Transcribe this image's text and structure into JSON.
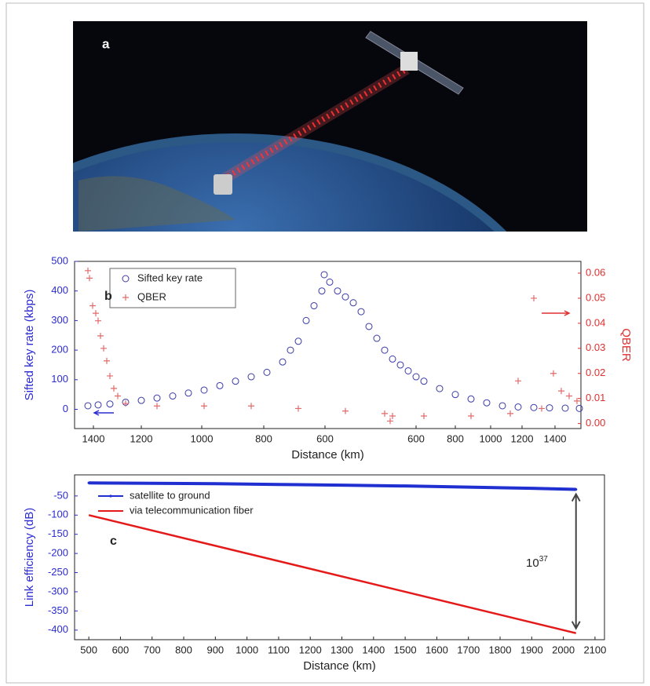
{
  "image_panel": {
    "label": "a"
  },
  "chart_data": [
    {
      "type": "scatter",
      "panel_label": "b",
      "xlabel": "Distance (km)",
      "ylabel": "Sifted key rate (kbps)",
      "y2label": "QBER",
      "legend": "upper left",
      "xlim": [
        0,
        645
      ],
      "xticks": [
        {
          "value": 24,
          "label": "1400"
        },
        {
          "value": 85,
          "label": "1200"
        },
        {
          "value": 162,
          "label": "1000"
        },
        {
          "value": 241,
          "label": "800"
        },
        {
          "value": 319,
          "label": "600"
        },
        {
          "value": 435,
          "label": "600"
        },
        {
          "value": 485,
          "label": "800"
        },
        {
          "value": 530,
          "label": "1000"
        },
        {
          "value": 570,
          "label": "1200"
        },
        {
          "value": 612,
          "label": "1400"
        }
      ],
      "ylim": [
        -65,
        500
      ],
      "yticks": [
        0,
        100,
        200,
        300,
        400,
        500
      ],
      "ycolor": "#2b2bd0",
      "y2lim": [
        -0.002,
        0.0647
      ],
      "y2ticks": [
        {
          "value": 0,
          "label": "0.00"
        },
        0.01,
        0.02,
        0.03,
        0.04,
        0.05,
        0.06
      ],
      "y2color": "#e03030",
      "series": [
        {
          "name": "Sifted key rate",
          "color": "#3a3aa8",
          "marker": "circle",
          "x": [
            17,
            30,
            45,
            65,
            85,
            105,
            125,
            145,
            165,
            185,
            205,
            225,
            245,
            265,
            275,
            285,
            295,
            305,
            315,
            318,
            325,
            335,
            345,
            355,
            365,
            375,
            385,
            395,
            405,
            415,
            425,
            435,
            445,
            465,
            485,
            505,
            525,
            545,
            565,
            585,
            605,
            625,
            643
          ],
          "values": [
            12,
            15,
            18,
            24,
            30,
            38,
            45,
            55,
            65,
            80,
            95,
            110,
            125,
            160,
            200,
            230,
            300,
            350,
            400,
            455,
            430,
            400,
            380,
            360,
            330,
            280,
            240,
            200,
            170,
            150,
            130,
            110,
            95,
            70,
            50,
            35,
            22,
            12,
            8,
            6,
            5,
            4,
            3
          ]
        },
        {
          "name": "QBER",
          "color": "#e36a6a",
          "marker": "plus",
          "axis": "y2",
          "x": [
            17,
            19,
            23,
            27,
            30,
            33,
            37,
            41,
            45,
            50,
            55,
            65,
            105,
            165,
            225,
            285,
            345,
            395,
            402,
            405,
            445,
            505,
            555,
            565,
            585,
            595,
            610,
            620,
            630,
            640
          ],
          "values": [
            0.061,
            0.058,
            0.047,
            0.044,
            0.041,
            0.035,
            0.03,
            0.025,
            0.019,
            0.014,
            0.011,
            0.008,
            0.007,
            0.007,
            0.007,
            0.006,
            0.005,
            0.004,
            0.001,
            0.003,
            0.003,
            0.003,
            0.004,
            0.017,
            0.05,
            0.006,
            0.02,
            0.013,
            0.011,
            0.009
          ]
        }
      ]
    },
    {
      "type": "line",
      "panel_label": "c",
      "xlabel": "Distance (km)",
      "ylabel": "Link efficiency (dB)",
      "ycolor": "#2b2bd0",
      "legend": "upper left",
      "xlim": [
        455,
        2130
      ],
      "xticks": [
        500,
        600,
        700,
        800,
        900,
        1000,
        1100,
        1200,
        1300,
        1400,
        1500,
        1600,
        1700,
        1800,
        1900,
        2000,
        2100
      ],
      "ylim": [
        -425,
        5
      ],
      "yticks": [
        -50,
        -100,
        -150,
        -200,
        -250,
        -300,
        -350,
        -400
      ],
      "annotation": "10",
      "annotation_exponent": "37",
      "series": [
        {
          "name": "satellite to ground",
          "color": "#1f2fd0",
          "marker": "dot",
          "x": [
            500,
            700,
            900,
            1100,
            1300,
            1500,
            1700,
            1900,
            2040
          ],
          "values": [
            -16,
            -17,
            -18,
            -20,
            -22,
            -24,
            -27,
            -30,
            -33
          ]
        },
        {
          "name": "via telecommunication fiber",
          "color": "#e41a1a",
          "x": [
            500,
            2040
          ],
          "values": [
            -100,
            -408
          ]
        }
      ]
    }
  ]
}
